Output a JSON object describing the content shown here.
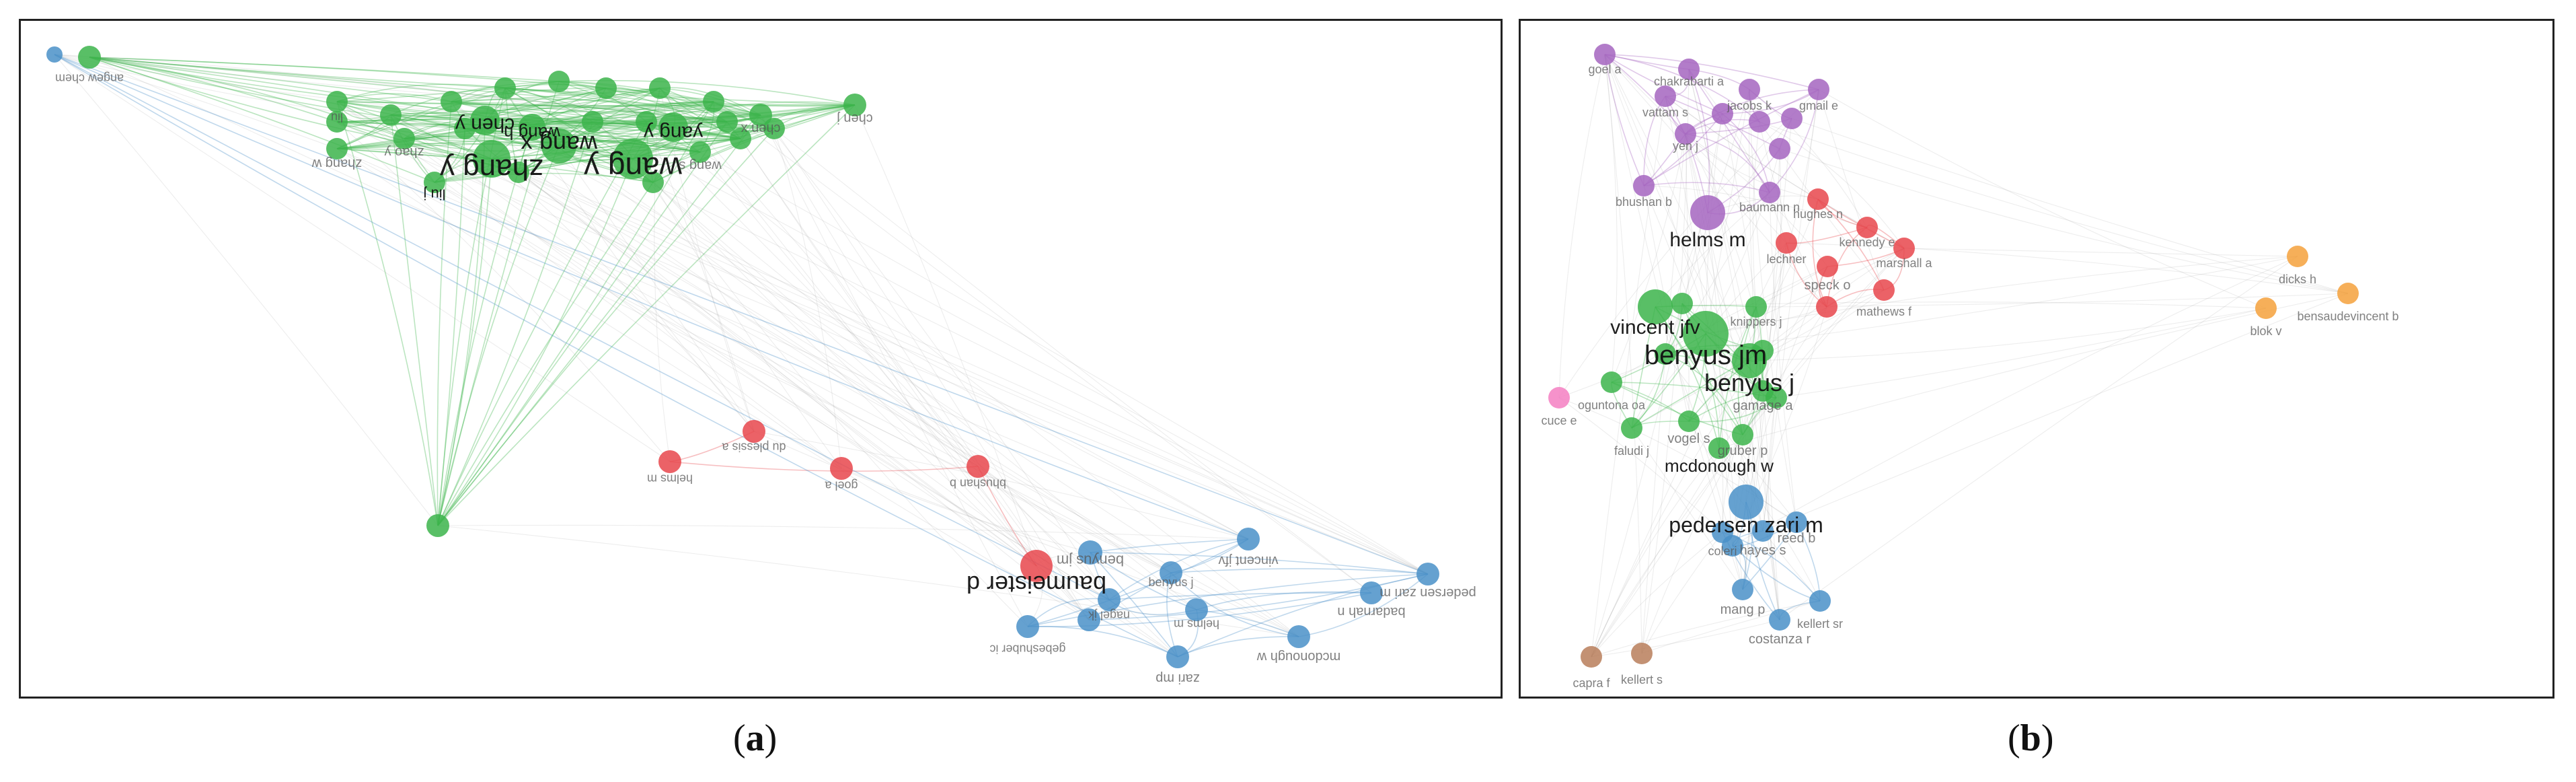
{
  "panels": [
    {
      "caption": "a",
      "nodes": [
        {
          "label": "angew chem",
          "color": "green"
        },
        {
          "label": "chen y",
          "color": "green"
        },
        {
          "label": "wang h",
          "color": "green"
        },
        {
          "label": "zhang y",
          "color": "green"
        },
        {
          "label": "wang x",
          "color": "green"
        },
        {
          "label": "wang y",
          "color": "green"
        },
        {
          "label": "yang y",
          "color": "green"
        },
        {
          "label": "chen x",
          "color": "green"
        },
        {
          "label": "chen j",
          "color": "green"
        },
        {
          "label": "zhao y",
          "color": "green"
        },
        {
          "label": "zhang w",
          "color": "green"
        },
        {
          "label": "wang s",
          "color": "green"
        },
        {
          "label": "liu j",
          "color": "green"
        },
        {
          "label": "liu",
          "color": "green"
        },
        {
          "label": "",
          "color": "green"
        },
        {
          "label": "",
          "color": "green"
        },
        {
          "label": "",
          "color": "green"
        },
        {
          "label": "",
          "color": "green"
        },
        {
          "label": "",
          "color": "green"
        },
        {
          "label": "",
          "color": "green"
        },
        {
          "label": "",
          "color": "green"
        },
        {
          "label": "",
          "color": "green"
        },
        {
          "label": "",
          "color": "green"
        },
        {
          "label": "",
          "color": "green"
        },
        {
          "label": "",
          "color": "green"
        },
        {
          "label": "",
          "color": "green"
        },
        {
          "label": "",
          "color": "green"
        },
        {
          "label": "",
          "color": "green"
        },
        {
          "label": "",
          "color": "green"
        },
        {
          "label": "",
          "color": "green"
        },
        {
          "label": "",
          "color": "green"
        },
        {
          "label": "du plessis a",
          "color": "red"
        },
        {
          "label": "helms m",
          "color": "red"
        },
        {
          "label": "goel a",
          "color": "red"
        },
        {
          "label": "bhushan b",
          "color": "red"
        },
        {
          "label": "baumeister d",
          "color": "red"
        },
        {
          "label": "benyus jm",
          "color": "blue"
        },
        {
          "label": "vincent jfv",
          "color": "blue"
        },
        {
          "label": "badarnah n",
          "color": "blue"
        },
        {
          "label": "pedersen zari m",
          "color": "blue"
        },
        {
          "label": "gebeshuber ic",
          "color": "blue"
        },
        {
          "label": "zari mp",
          "color": "blue"
        },
        {
          "label": "mcdonough w",
          "color": "blue"
        },
        {
          "label": "nagel jk",
          "color": "blue"
        },
        {
          "label": "helms m",
          "color": "blue"
        },
        {
          "label": "benyus j",
          "color": "blue"
        },
        {
          "label": "",
          "color": "blue"
        },
        {
          "label": "",
          "color": "blue"
        }
      ]
    },
    {
      "caption": "b",
      "nodes": [
        {
          "label": "goel a",
          "color": "purple"
        },
        {
          "label": "chakrabarti a",
          "color": "purple"
        },
        {
          "label": "vattam s",
          "color": "purple"
        },
        {
          "label": "yen j",
          "color": "purple"
        },
        {
          "label": "jacobs k",
          "color": "purple"
        },
        {
          "label": "gmail e",
          "color": "purple"
        },
        {
          "label": "bhushan b",
          "color": "purple"
        },
        {
          "label": "helms m",
          "color": "purple"
        },
        {
          "label": "baumann n",
          "color": "purple"
        },
        {
          "label": "",
          "color": "purple"
        },
        {
          "label": "",
          "color": "purple"
        },
        {
          "label": "",
          "color": "purple"
        },
        {
          "label": "",
          "color": "purple"
        },
        {
          "label": "hughes n",
          "color": "red"
        },
        {
          "label": "kennedy e",
          "color": "red"
        },
        {
          "label": "marshall a",
          "color": "red"
        },
        {
          "label": "speck o",
          "color": "red"
        },
        {
          "label": "mathews f",
          "color": "red"
        },
        {
          "label": "lechner",
          "color": "red"
        },
        {
          "label": "",
          "color": "red"
        },
        {
          "label": "dicks h",
          "color": "orange"
        },
        {
          "label": "bensaudevincent b",
          "color": "orange"
        },
        {
          "label": "blok v",
          "color": "orange"
        },
        {
          "label": "cuce e",
          "color": "pink"
        },
        {
          "label": "vincent jfv",
          "color": "green"
        },
        {
          "label": "benyus jm",
          "color": "green"
        },
        {
          "label": "benyus j",
          "color": "green"
        },
        {
          "label": "oguntona oa",
          "color": "green"
        },
        {
          "label": "faludi j",
          "color": "green"
        },
        {
          "label": "vogel s",
          "color": "green"
        },
        {
          "label": "mcdonough w",
          "color": "green"
        },
        {
          "label": "gruber p",
          "color": "green"
        },
        {
          "label": "knippers j",
          "color": "green"
        },
        {
          "label": "gamage a",
          "color": "green"
        },
        {
          "label": "",
          "color": "green"
        },
        {
          "label": "",
          "color": "green"
        },
        {
          "label": "",
          "color": "green"
        },
        {
          "label": "",
          "color": "green"
        },
        {
          "label": "pedersen zari m",
          "color": "blue"
        },
        {
          "label": "reed b",
          "color": "blue"
        },
        {
          "label": "coleri",
          "color": "blue"
        },
        {
          "label": "hayes s",
          "color": "blue"
        },
        {
          "label": "mang p",
          "color": "blue"
        },
        {
          "label": "costanza r",
          "color": "blue"
        },
        {
          "label": "kellert sr",
          "color": "blue"
        },
        {
          "label": "",
          "color": "blue"
        },
        {
          "label": "capra f",
          "color": "brown"
        },
        {
          "label": "kellert s",
          "color": "brown"
        }
      ]
    }
  ],
  "colors": {
    "green": "#3cb44b",
    "red": "#e8474c",
    "blue": "#4a90c8",
    "purple": "#a565c0",
    "orange": "#f5a13c",
    "pink": "#f47fc2",
    "brown": "#b97e5a",
    "grey_edge": "#999999",
    "label": "#555555",
    "label_dark": "#111111"
  }
}
